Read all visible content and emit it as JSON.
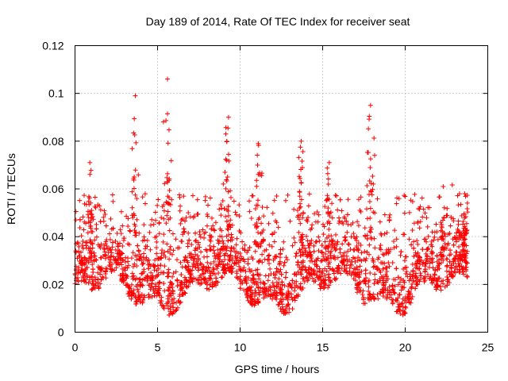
{
  "chart_data": {
    "type": "scatter",
    "title": "Day 189 of 2014, Rate Of TEC Index for receiver seat",
    "xlabel": "GPS time / hours",
    "ylabel": "ROTI / TECUs",
    "xlim": [
      0,
      25
    ],
    "ylim": [
      0,
      0.12
    ],
    "grid": true,
    "marker": "+",
    "xticks": [
      0,
      5,
      10,
      15,
      20,
      25
    ],
    "xtick_labels": [
      "0",
      "5",
      "10",
      "15",
      "20",
      "25"
    ],
    "yticks": [
      0,
      0.02,
      0.04,
      0.06,
      0.08,
      0.1,
      0.12
    ],
    "ytick_labels": [
      "0",
      "0.02",
      "0.04",
      "0.06",
      "0.08",
      "0.1",
      "0.12"
    ],
    "series": [
      {
        "name": "ROTI",
        "color": "#ff0000",
        "x_range": [
          0,
          23.8
        ],
        "peaks": [
          {
            "x": 0.9,
            "y": 0.071
          },
          {
            "x": 3.65,
            "y": 0.099
          },
          {
            "x": 5.6,
            "y": 0.106
          },
          {
            "x": 9.3,
            "y": 0.09
          },
          {
            "x": 11.1,
            "y": 0.079
          },
          {
            "x": 13.7,
            "y": 0.08
          },
          {
            "x": 15.4,
            "y": 0.071
          },
          {
            "x": 17.9,
            "y": 0.095
          },
          {
            "x": 22.3,
            "y": 0.061
          },
          {
            "x": 23.6,
            "y": 0.058
          }
        ]
      }
    ]
  }
}
